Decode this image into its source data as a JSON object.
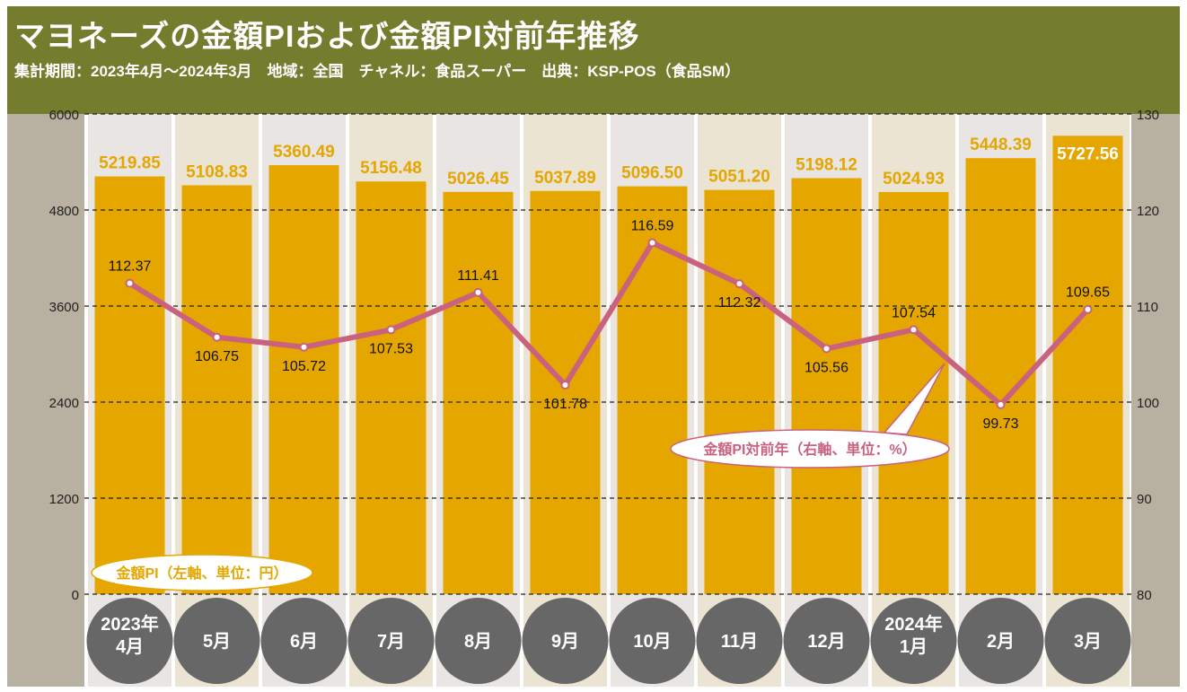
{
  "header": {
    "title": "マヨネーズの金額PIおよび金額PI対前年推移",
    "subtitle": "集計期間：2023年4月～2024年3月　地域：全国　チャネル：食品スーパー　出典：KSP-POS（食品SM）"
  },
  "colors": {
    "header": "#737d2d",
    "bar": "#e5a600",
    "line": "#c9617f",
    "axis_panel": "#b8b0a0",
    "col_a": "#e8e5e2",
    "col_b": "#ebe4d2",
    "month_circle": "#666766"
  },
  "chart_data": {
    "type": "bar+line",
    "categories": [
      "2023年\n4月",
      "5月",
      "6月",
      "7月",
      "8月",
      "9月",
      "10月",
      "11月",
      "12月",
      "2024年\n1月",
      "2月",
      "3月"
    ],
    "series": [
      {
        "name": "金額PI（左軸、単位：円）",
        "type": "bar",
        "axis": "left",
        "values": [
          5219.85,
          5108.83,
          5360.49,
          5156.48,
          5026.45,
          5037.89,
          5096.5,
          5051.2,
          5198.12,
          5024.93,
          5448.39,
          5727.56
        ],
        "labels": [
          "5219.85",
          "5108.83",
          "5360.49",
          "5156.48",
          "5026.45",
          "5037.89",
          "5096.50",
          "5051.20",
          "5198.12",
          "5024.93",
          "5448.39",
          "5727.56"
        ]
      },
      {
        "name": "金額PI対前年（右軸、単位：%）",
        "type": "line",
        "axis": "right",
        "values": [
          112.37,
          106.75,
          105.72,
          107.53,
          111.41,
          101.78,
          116.59,
          112.32,
          105.56,
          107.54,
          99.73,
          109.65
        ],
        "labels": [
          "112.37",
          "106.75",
          "105.72",
          "107.53",
          "111.41",
          "101.78",
          "116.59",
          "112.32",
          "105.56",
          "107.54",
          "99.73",
          "109.65"
        ]
      }
    ],
    "left_axis": {
      "range": [
        0,
        6000
      ],
      "ticks": [
        "0",
        "1200",
        "2400",
        "3600",
        "4800",
        "6000"
      ]
    },
    "right_axis": {
      "range": [
        80,
        130
      ],
      "ticks": [
        "80",
        "90",
        "100",
        "110",
        "120",
        "130"
      ]
    },
    "grid": "dashed horizontal",
    "legend_bar": "金額PI（左軸、単位：円）",
    "legend_line": "金額PI対前年（右軸、単位：%）"
  }
}
